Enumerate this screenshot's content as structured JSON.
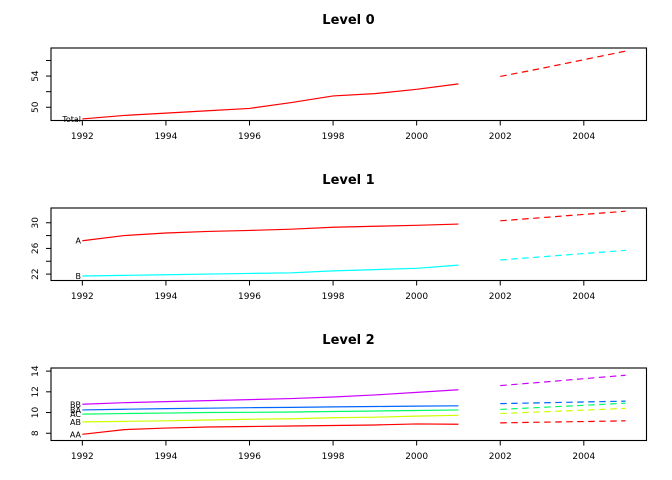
{
  "figure": {
    "background": "#ffffff",
    "axis_color": "#000000",
    "text_color": "#000000"
  },
  "chart_data": [
    {
      "type": "line",
      "title": "Level 0",
      "xlim": [
        1991.25,
        2005.5
      ],
      "ylim": [
        48.3,
        57.6
      ],
      "xticks": [
        1992,
        1994,
        1996,
        1998,
        2000,
        2002,
        2004
      ],
      "yticks": [
        50,
        52,
        54,
        56
      ],
      "ytick_labels": [
        "50",
        "",
        "54",
        ""
      ],
      "x_history": [
        1992,
        1993,
        1994,
        1995,
        1996,
        1997,
        1998,
        1999,
        2000,
        2001
      ],
      "x_forecast": [
        2002,
        2003,
        2004,
        2005
      ],
      "grid": false,
      "legend": "inline-labels",
      "series": [
        {
          "name": "Total",
          "label": "Total",
          "color": "#FF0000",
          "history": [
            48.5,
            48.95,
            49.25,
            49.55,
            49.85,
            50.6,
            51.45,
            51.75,
            52.3,
            53.0
          ],
          "forecast": [
            53.95,
            55.0,
            56.1,
            57.2
          ]
        }
      ]
    },
    {
      "type": "line",
      "title": "Level 1",
      "xlim": [
        1991.25,
        2005.5
      ],
      "ylim": [
        21.0,
        32.3
      ],
      "xticks": [
        1992,
        1994,
        1996,
        1998,
        2000,
        2002,
        2004
      ],
      "yticks": [
        22,
        24,
        26,
        28,
        30
      ],
      "ytick_labels": [
        "22",
        "",
        "26",
        "",
        "30"
      ],
      "x_history": [
        1992,
        1993,
        1994,
        1995,
        1996,
        1997,
        1998,
        1999,
        2000,
        2001
      ],
      "x_forecast": [
        2002,
        2003,
        2004,
        2005
      ],
      "grid": false,
      "legend": "inline-labels",
      "series": [
        {
          "name": "A",
          "label": "A",
          "color": "#FF0000",
          "history": [
            27.2,
            28.0,
            28.4,
            28.65,
            28.8,
            29.0,
            29.3,
            29.45,
            29.6,
            29.8
          ],
          "forecast": [
            30.3,
            30.8,
            31.3,
            31.8
          ]
        },
        {
          "name": "B",
          "label": "B",
          "color": "#00FFFF",
          "history": [
            21.7,
            21.8,
            21.9,
            22.0,
            22.1,
            22.2,
            22.5,
            22.7,
            22.9,
            23.4
          ],
          "forecast": [
            24.2,
            24.7,
            25.2,
            25.7
          ]
        }
      ]
    },
    {
      "type": "line",
      "title": "Level 2",
      "xlim": [
        1991.25,
        2005.5
      ],
      "ylim": [
        7.3,
        14.3
      ],
      "xticks": [
        1992,
        1994,
        1996,
        1998,
        2000,
        2002,
        2004
      ],
      "yticks": [
        8,
        10,
        12,
        14
      ],
      "ytick_labels": [
        "8",
        "10",
        "12",
        "14"
      ],
      "x_history": [
        1992,
        1993,
        1994,
        1995,
        1996,
        1997,
        1998,
        1999,
        2000,
        2001
      ],
      "x_forecast": [
        2002,
        2003,
        2004,
        2005
      ],
      "grid": false,
      "legend": "inline-labels",
      "series": [
        {
          "name": "AA",
          "label": "AA",
          "color": "#FF0000",
          "history": [
            7.9,
            8.35,
            8.5,
            8.6,
            8.65,
            8.7,
            8.75,
            8.8,
            8.9,
            8.87
          ],
          "forecast": [
            9.0,
            9.07,
            9.13,
            9.2
          ]
        },
        {
          "name": "AB",
          "label": "AB",
          "color": "#CCFF00",
          "history": [
            9.1,
            9.15,
            9.2,
            9.28,
            9.35,
            9.4,
            9.5,
            9.55,
            9.65,
            9.73
          ],
          "forecast": [
            9.9,
            10.07,
            10.23,
            10.4
          ]
        },
        {
          "name": "AC",
          "label": "AC",
          "color": "#00FF66",
          "history": [
            9.85,
            9.9,
            9.95,
            10.0,
            10.02,
            10.05,
            10.1,
            10.15,
            10.2,
            10.25
          ],
          "forecast": [
            10.3,
            10.5,
            10.7,
            10.9
          ]
        },
        {
          "name": "BA",
          "label": "BA",
          "color": "#0066FF",
          "history": [
            10.25,
            10.32,
            10.38,
            10.42,
            10.47,
            10.5,
            10.55,
            10.58,
            10.62,
            10.65
          ],
          "forecast": [
            10.86,
            10.94,
            11.02,
            11.1
          ]
        },
        {
          "name": "BB",
          "label": "BB",
          "color": "#CC00FF",
          "history": [
            10.8,
            10.95,
            11.05,
            11.15,
            11.25,
            11.35,
            11.5,
            11.7,
            11.95,
            12.2
          ],
          "forecast": [
            12.6,
            12.93,
            13.27,
            13.6
          ]
        }
      ]
    }
  ]
}
